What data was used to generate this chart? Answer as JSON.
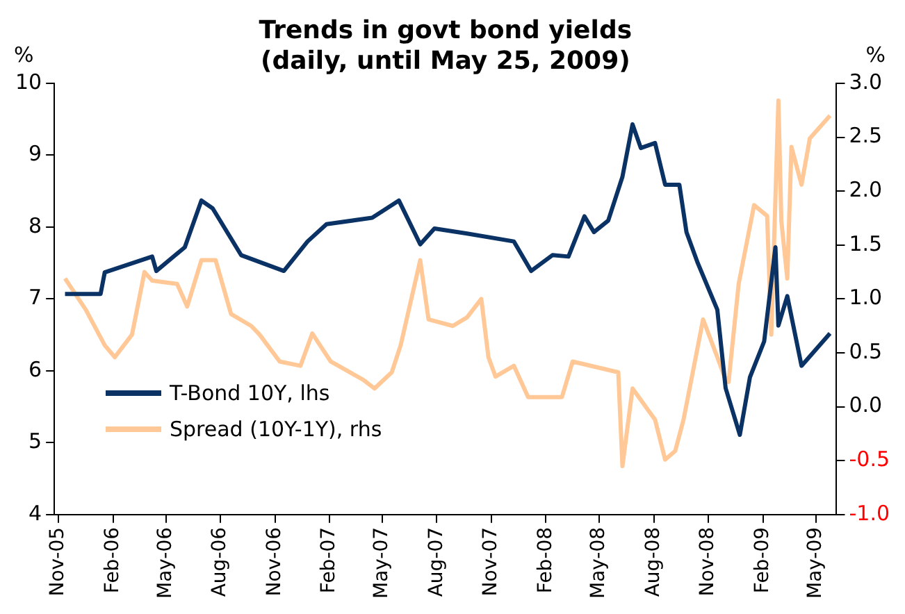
{
  "chart_data": {
    "type": "line",
    "title": "Trends in govt bond yields",
    "subtitle": "(daily, until May 25, 2009)",
    "ylabel": "%",
    "y2label": "%",
    "xlim": [
      "2005-10-25",
      "2009-06-05"
    ],
    "xticks": [
      {
        "value": "2005-11-01",
        "label": "Nov-05"
      },
      {
        "value": "2006-02-01",
        "label": "Feb-06"
      },
      {
        "value": "2006-05-01",
        "label": "May-06"
      },
      {
        "value": "2006-08-01",
        "label": "Aug-06"
      },
      {
        "value": "2006-11-01",
        "label": "Nov-06"
      },
      {
        "value": "2007-02-01",
        "label": "Feb-07"
      },
      {
        "value": "2007-05-01",
        "label": "May-07"
      },
      {
        "value": "2007-08-01",
        "label": "Aug-07"
      },
      {
        "value": "2007-11-01",
        "label": "Nov-07"
      },
      {
        "value": "2008-02-01",
        "label": "Feb-08"
      },
      {
        "value": "2008-05-01",
        "label": "May-08"
      },
      {
        "value": "2008-08-01",
        "label": "Aug-08"
      },
      {
        "value": "2008-11-01",
        "label": "Nov-08"
      },
      {
        "value": "2009-02-01",
        "label": "Feb-09"
      },
      {
        "value": "2009-05-01",
        "label": "May-09"
      }
    ],
    "ylim": [
      4,
      10
    ],
    "yticks": [
      4,
      5,
      6,
      7,
      8,
      9,
      10
    ],
    "y2lim": [
      -1,
      3
    ],
    "y2ticks": [
      {
        "value": -1,
        "label": "-1.0"
      },
      {
        "value": -0.5,
        "label": "-0.5"
      },
      {
        "value": 0,
        "label": "0.0"
      },
      {
        "value": 0.5,
        "label": "0.5"
      },
      {
        "value": 1,
        "label": "1.0"
      },
      {
        "value": 1.5,
        "label": "1.5"
      },
      {
        "value": 2,
        "label": "2.0"
      },
      {
        "value": 2.5,
        "label": "2.5"
      },
      {
        "value": 3,
        "label": "3.0"
      }
    ],
    "grid": false,
    "legend": "bottom left",
    "marker": "none",
    "line_style": "solid",
    "series": [
      {
        "name": "T-Bond 10Y, lhs",
        "color": "#0a3264",
        "x": [
          "2005-11-12",
          "2006-01-11",
          "2006-01-18",
          "2006-04-08",
          "2006-04-15",
          "2006-06-02",
          "2006-06-30",
          "2006-07-19",
          "2006-09-05",
          "2006-11-16",
          "2006-12-26",
          "2007-01-27",
          "2007-04-14",
          "2007-05-29",
          "2007-07-04",
          "2007-07-28",
          "2007-09-21",
          "2007-12-09",
          "2008-01-07",
          "2008-02-12",
          "2008-03-10",
          "2008-04-06",
          "2008-04-22",
          "2008-05-16",
          "2008-06-09",
          "2008-06-26",
          "2008-07-10",
          "2008-08-03",
          "2008-08-20",
          "2008-09-13",
          "2008-09-25",
          "2008-10-14",
          "2008-11-16",
          "2008-11-30",
          "2008-12-24",
          "2009-01-10",
          "2009-02-03",
          "2009-02-22",
          "2009-02-27",
          "2009-03-14",
          "2009-04-07",
          "2009-05-25"
        ],
        "values": [
          7.07,
          7.07,
          7.37,
          7.59,
          7.39,
          7.72,
          8.37,
          8.26,
          7.61,
          7.39,
          7.8,
          8.04,
          8.13,
          8.37,
          7.76,
          7.98,
          7.91,
          7.8,
          7.39,
          7.61,
          7.59,
          8.15,
          7.93,
          8.09,
          8.7,
          9.43,
          9.1,
          9.17,
          8.59,
          8.59,
          7.93,
          7.5,
          6.85,
          5.76,
          5.11,
          5.91,
          6.41,
          7.72,
          6.63,
          7.04,
          6.07,
          6.52
        ]
      },
      {
        "name": "Spread (10Y-1Y), rhs",
        "color": "#ffc896",
        "axis": "y2",
        "x": [
          "2005-11-12",
          "2005-12-17",
          "2006-01-18",
          "2006-02-04",
          "2006-03-05",
          "2006-03-26",
          "2006-04-08",
          "2006-05-20",
          "2006-06-06",
          "2006-06-30",
          "2006-07-24",
          "2006-08-19",
          "2006-09-22",
          "2006-10-06",
          "2006-11-09",
          "2006-12-14",
          "2007-01-03",
          "2007-02-03",
          "2007-03-30",
          "2007-04-18",
          "2007-05-17",
          "2007-06-01",
          "2007-07-04",
          "2007-07-18",
          "2007-08-28",
          "2007-09-21",
          "2007-10-15",
          "2007-10-27",
          "2007-11-08",
          "2007-12-09",
          "2008-01-02",
          "2008-02-28",
          "2008-03-17",
          "2008-06-02",
          "2008-06-09",
          "2008-06-26",
          "2008-08-03",
          "2008-08-20",
          "2008-09-06",
          "2008-09-20",
          "2008-10-23",
          "2008-11-16",
          "2008-11-28",
          "2008-12-05",
          "2008-12-22",
          "2009-01-17",
          "2009-02-08",
          "2009-02-15",
          "2009-02-27",
          "2009-03-04",
          "2009-03-14",
          "2009-03-21",
          "2009-04-07",
          "2009-04-21",
          "2009-05-25"
        ],
        "values": [
          1.19,
          0.9,
          0.57,
          0.46,
          0.67,
          1.25,
          1.17,
          1.14,
          0.93,
          1.36,
          1.36,
          0.86,
          0.75,
          0.67,
          0.42,
          0.38,
          0.68,
          0.42,
          0.25,
          0.17,
          0.32,
          0.57,
          1.36,
          0.81,
          0.75,
          0.83,
          1.0,
          0.46,
          0.28,
          0.38,
          0.09,
          0.09,
          0.42,
          0.32,
          -0.55,
          0.17,
          -0.12,
          -0.49,
          -0.41,
          -0.12,
          0.81,
          0.46,
          0.28,
          0.23,
          1.14,
          1.87,
          1.77,
          0.67,
          2.84,
          1.72,
          1.19,
          2.41,
          2.06,
          2.49,
          2.7
        ]
      }
    ]
  }
}
